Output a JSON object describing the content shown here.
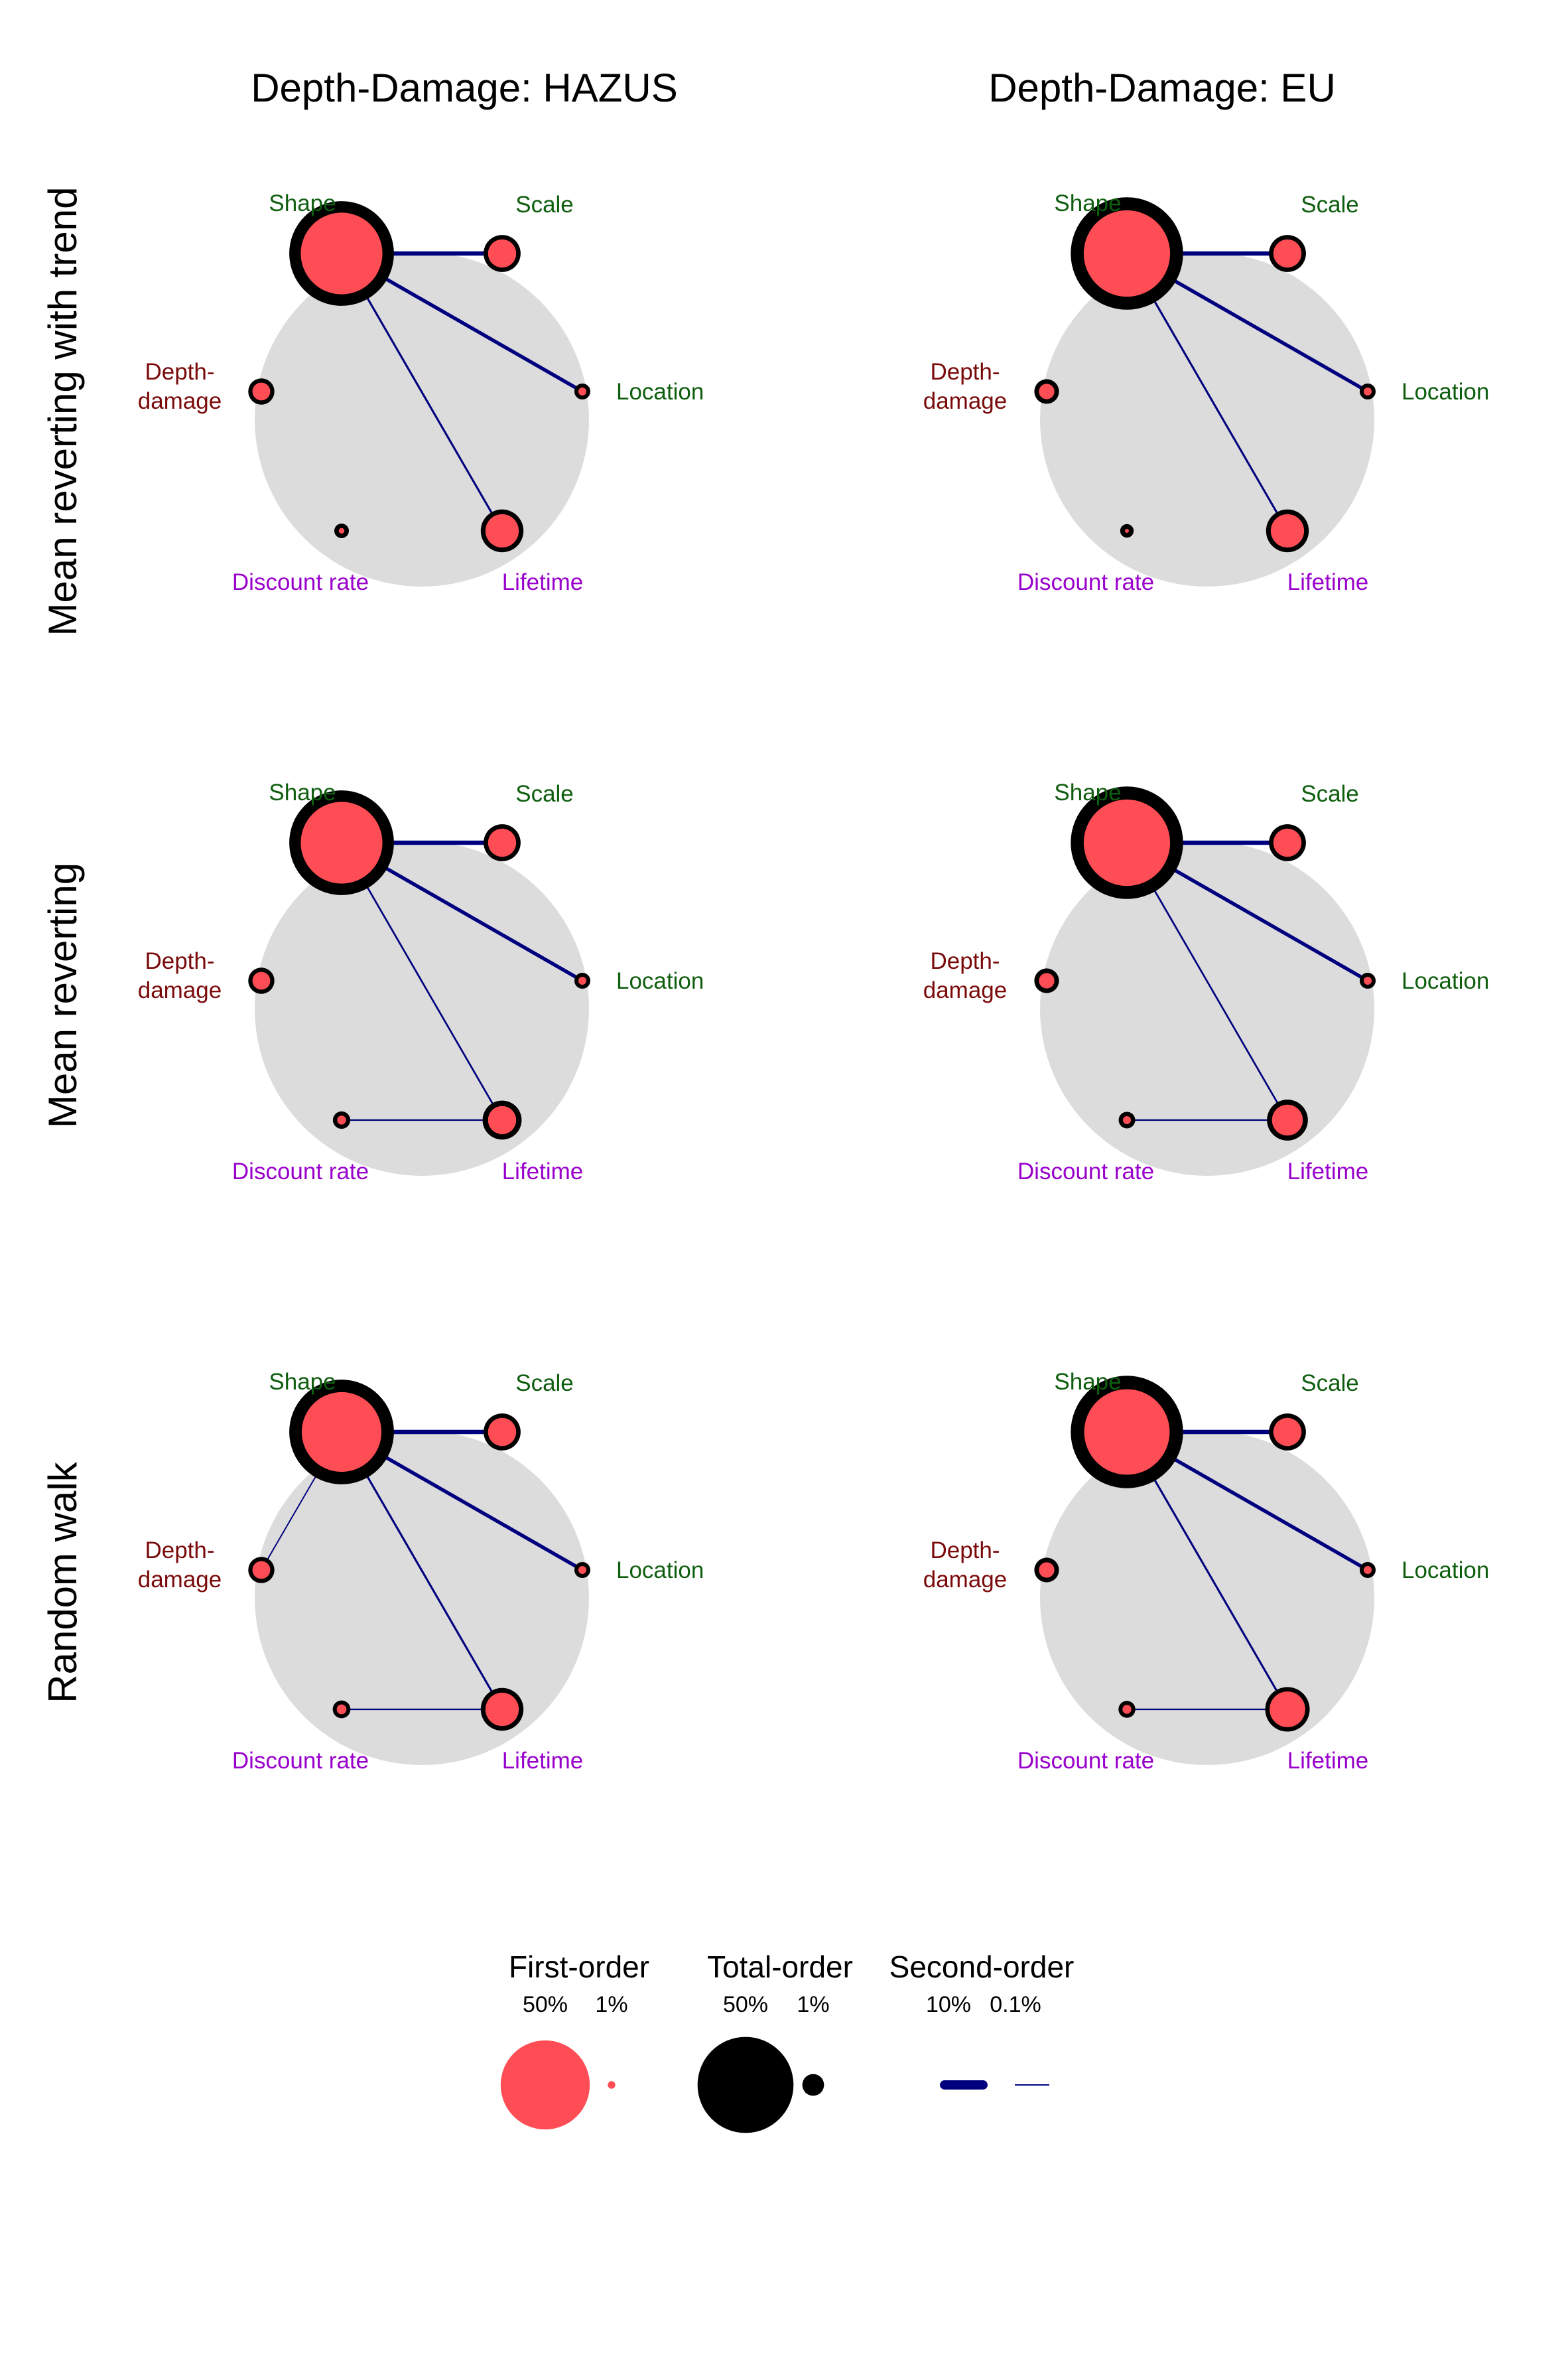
{
  "column_titles": [
    "Depth-Damage: HAZUS",
    "Depth-Damage: EU"
  ],
  "row_titles": [
    "Mean reverting with trend",
    "Mean reverting",
    "Random walk"
  ],
  "colors": {
    "background_circle": "#dcdcdc",
    "first_order_fill": "#ff4d55",
    "total_order": "#000000",
    "second_order": "#00007f",
    "label_green": "#0f5e0f",
    "label_darkred": "#7a0a0a",
    "label_purple": "#9900cc"
  },
  "node_labels": {
    "shape": {
      "text": "Shape",
      "color": "green"
    },
    "scale": {
      "text": "Scale",
      "color": "green"
    },
    "location": {
      "text": "Location",
      "color": "green"
    },
    "depth_damage": {
      "line1": "Depth-",
      "line2": "damage",
      "color": "darkred"
    },
    "discount_rate": {
      "text": "Discount rate",
      "color": "purple"
    },
    "lifetime": {
      "text": "Lifetime",
      "color": "purple"
    }
  },
  "panels": [
    {
      "row": 0,
      "col": 0,
      "nodes": {
        "shape": {
          "first": 0.42,
          "total": 0.72
        },
        "scale": {
          "first": 0.05,
          "total": 0.09
        },
        "location": {
          "first": 0.004,
          "total": 0.016
        },
        "depth_damage": {
          "first": 0.02,
          "total": 0.045
        },
        "discount_rate": {
          "first": 0.002,
          "total": 0.014
        },
        "lifetime": {
          "first": 0.07,
          "total": 0.12
        }
      },
      "second_order": [
        {
          "from": "shape",
          "to": "scale",
          "value": 0.085
        },
        {
          "from": "shape",
          "to": "location",
          "value": 0.06
        },
        {
          "from": "shape",
          "to": "lifetime",
          "value": 0.02
        }
      ]
    },
    {
      "row": 0,
      "col": 1,
      "nodes": {
        "shape": {
          "first": 0.47,
          "total": 0.83
        },
        "scale": {
          "first": 0.05,
          "total": 0.09
        },
        "location": {
          "first": 0.004,
          "total": 0.016
        },
        "depth_damage": {
          "first": 0.015,
          "total": 0.04
        },
        "discount_rate": {
          "first": 0.001,
          "total": 0.012
        },
        "lifetime": {
          "first": 0.07,
          "total": 0.12
        }
      },
      "second_order": [
        {
          "from": "shape",
          "to": "scale",
          "value": 0.09
        },
        {
          "from": "shape",
          "to": "location",
          "value": 0.06
        },
        {
          "from": "shape",
          "to": "lifetime",
          "value": 0.02
        }
      ]
    },
    {
      "row": 1,
      "col": 0,
      "nodes": {
        "shape": {
          "first": 0.42,
          "total": 0.72
        },
        "scale": {
          "first": 0.05,
          "total": 0.09
        },
        "location": {
          "first": 0.004,
          "total": 0.016
        },
        "depth_damage": {
          "first": 0.02,
          "total": 0.045
        },
        "discount_rate": {
          "first": 0.005,
          "total": 0.02
        },
        "lifetime": {
          "first": 0.05,
          "total": 0.1
        }
      },
      "second_order": [
        {
          "from": "shape",
          "to": "scale",
          "value": 0.085
        },
        {
          "from": "shape",
          "to": "location",
          "value": 0.06
        },
        {
          "from": "shape",
          "to": "lifetime",
          "value": 0.015
        },
        {
          "from": "discount_rate",
          "to": "lifetime",
          "value": 0.01
        }
      ]
    },
    {
      "row": 1,
      "col": 1,
      "nodes": {
        "shape": {
          "first": 0.47,
          "total": 0.83
        },
        "scale": {
          "first": 0.05,
          "total": 0.09
        },
        "location": {
          "first": 0.004,
          "total": 0.016
        },
        "depth_damage": {
          "first": 0.015,
          "total": 0.04
        },
        "discount_rate": {
          "first": 0.004,
          "total": 0.018
        },
        "lifetime": {
          "first": 0.06,
          "total": 0.11
        }
      },
      "second_order": [
        {
          "from": "shape",
          "to": "scale",
          "value": 0.09
        },
        {
          "from": "shape",
          "to": "location",
          "value": 0.06
        },
        {
          "from": "shape",
          "to": "lifetime",
          "value": 0.015
        },
        {
          "from": "discount_rate",
          "to": "lifetime",
          "value": 0.01
        }
      ]
    },
    {
      "row": 2,
      "col": 0,
      "nodes": {
        "shape": {
          "first": 0.4,
          "total": 0.72
        },
        "scale": {
          "first": 0.05,
          "total": 0.09
        },
        "location": {
          "first": 0.004,
          "total": 0.016
        },
        "depth_damage": {
          "first": 0.02,
          "total": 0.045
        },
        "discount_rate": {
          "first": 0.006,
          "total": 0.02
        },
        "lifetime": {
          "first": 0.07,
          "total": 0.12
        }
      },
      "second_order": [
        {
          "from": "shape",
          "to": "scale",
          "value": 0.085
        },
        {
          "from": "shape",
          "to": "location",
          "value": 0.06
        },
        {
          "from": "shape",
          "to": "lifetime",
          "value": 0.02
        },
        {
          "from": "shape",
          "to": "depth_damage",
          "value": 0.008
        },
        {
          "from": "discount_rate",
          "to": "lifetime",
          "value": 0.01
        }
      ]
    },
    {
      "row": 2,
      "col": 1,
      "nodes": {
        "shape": {
          "first": 0.46,
          "total": 0.83
        },
        "scale": {
          "first": 0.05,
          "total": 0.09
        },
        "location": {
          "first": 0.004,
          "total": 0.016
        },
        "depth_damage": {
          "first": 0.015,
          "total": 0.04
        },
        "discount_rate": {
          "first": 0.005,
          "total": 0.018
        },
        "lifetime": {
          "first": 0.08,
          "total": 0.13
        }
      },
      "second_order": [
        {
          "from": "shape",
          "to": "scale",
          "value": 0.09
        },
        {
          "from": "shape",
          "to": "location",
          "value": 0.06
        },
        {
          "from": "shape",
          "to": "lifetime",
          "value": 0.02
        },
        {
          "from": "discount_rate",
          "to": "lifetime",
          "value": 0.01
        }
      ]
    }
  ],
  "legend": {
    "first_order": {
      "title": "First-order",
      "high_label": "50%",
      "low_label": "1%",
      "high_value": 0.5,
      "low_value": 0.01
    },
    "total_order": {
      "title": "Total-order",
      "high_label": "50%",
      "low_label": "1%",
      "high_value": 0.5,
      "low_value": 0.01
    },
    "second_order": {
      "title": "Second-order",
      "high_label": "10%",
      "low_label": "0.1%",
      "high_value": 0.1,
      "low_value": 0.001
    }
  }
}
